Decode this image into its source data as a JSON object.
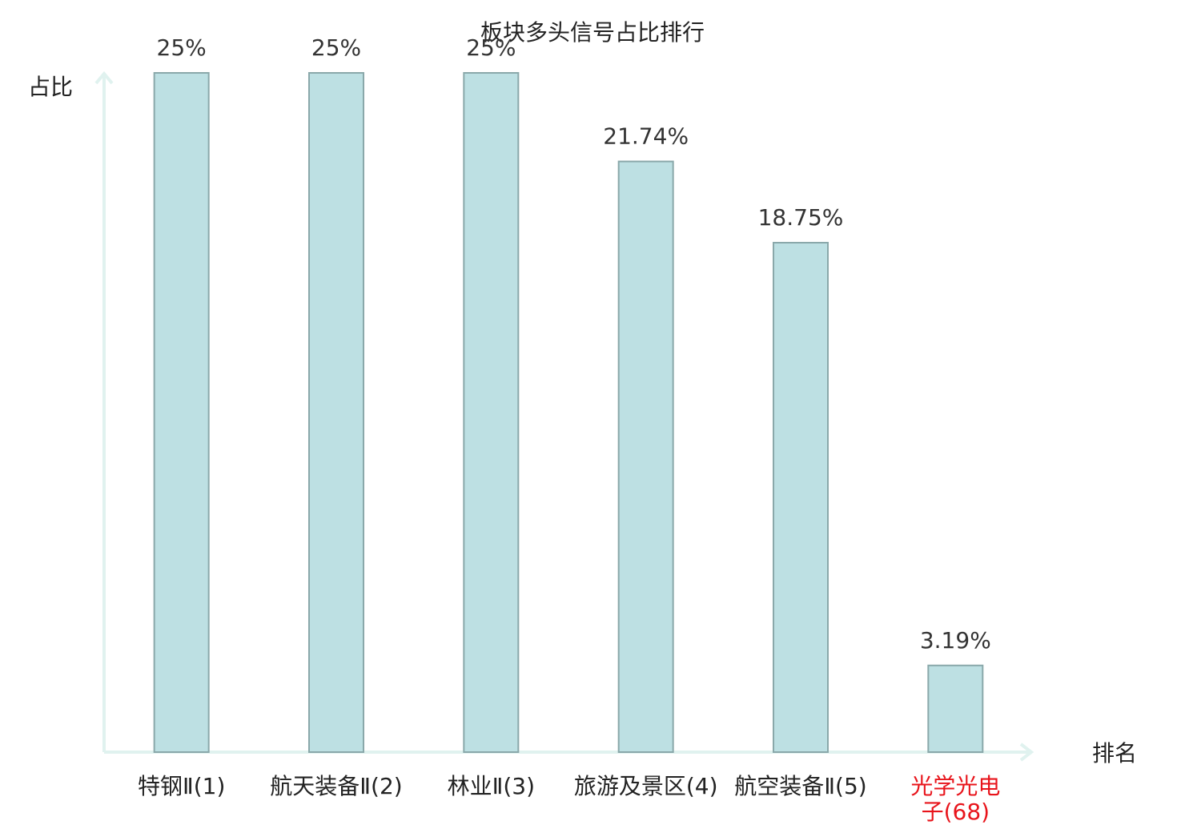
{
  "chart_data": {
    "type": "bar",
    "title": "板块多头信号占比排行",
    "y_label": "占比",
    "x_label": "排名",
    "categories": [
      "特钢Ⅱ(1)",
      "航天装备Ⅱ(2)",
      "林业Ⅱ(3)",
      "旅游及景区(4)",
      "航空装备Ⅱ(5)",
      "光学光电子(68)"
    ],
    "values": [
      25,
      25,
      25,
      21.74,
      18.75,
      3.19
    ],
    "value_labels": [
      "25%",
      "25%",
      "25%",
      "21.74%",
      "18.75%",
      "3.19%"
    ],
    "color": "#bde0e3",
    "edge_color": "#8aa8aa",
    "highlight": {
      "index": 5,
      "color": "#e8141b"
    },
    "ylim": [
      0,
      25
    ],
    "grid": false
  }
}
